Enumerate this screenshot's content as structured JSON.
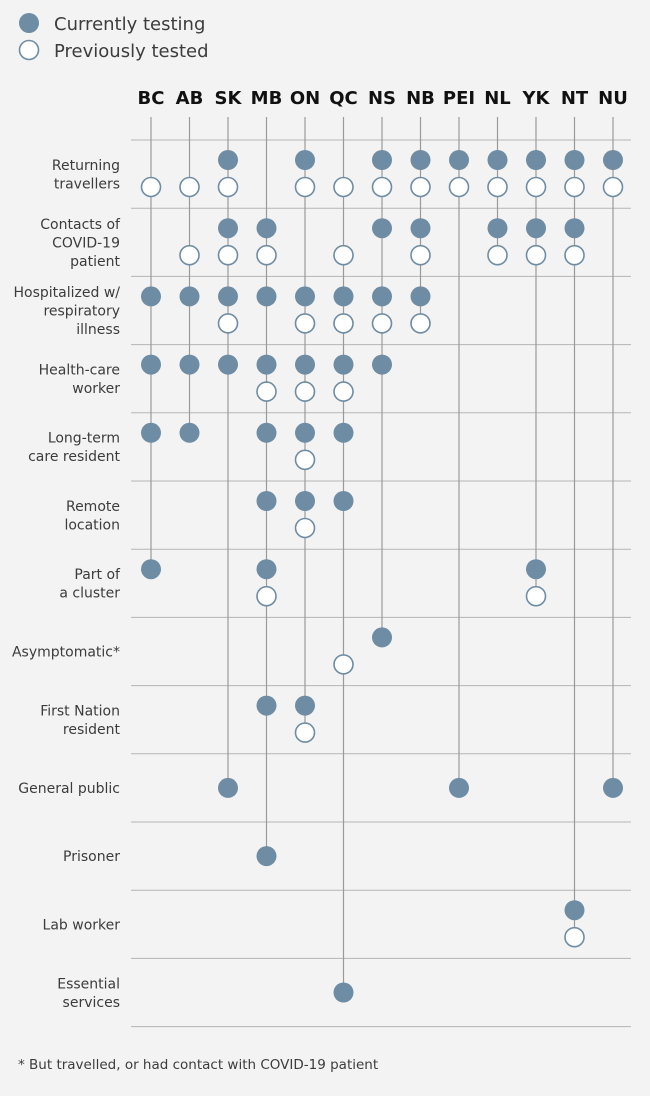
{
  "legend": {
    "current_label": "Currently testing",
    "previous_label": "Previously tested"
  },
  "colors": {
    "filled": "#6e8ca3",
    "outline": "#6e8ca3",
    "line": "#9a9a9a",
    "gridline": "#b5b5b5",
    "background": "#f3f3f3"
  },
  "footnote": "* But travelled, or had contact with COVID-19 patient",
  "chart_data": {
    "type": "dot-matrix",
    "title": "",
    "provinces": [
      "BC",
      "AB",
      "SK",
      "MB",
      "ON",
      "QC",
      "NS",
      "NB",
      "PEI",
      "NL",
      "YK",
      "NT",
      "NU"
    ],
    "categories": [
      {
        "label_lines": [
          "Returning",
          "travellers"
        ],
        "current": [
          "SK",
          "ON",
          "NS",
          "NB",
          "PEI",
          "NL",
          "YK",
          "NT",
          "NU"
        ],
        "previous": [
          "BC",
          "AB",
          "SK",
          "ON",
          "QC",
          "NS",
          "NB",
          "PEI",
          "NL",
          "YK",
          "NT",
          "NU"
        ]
      },
      {
        "label_lines": [
          "Contacts of",
          "COVID-19",
          "patient"
        ],
        "current": [
          "SK",
          "MB",
          "NS",
          "NB",
          "NL",
          "YK",
          "NT"
        ],
        "previous": [
          "AB",
          "SK",
          "MB",
          "QC",
          "NB",
          "NL",
          "YK",
          "NT"
        ]
      },
      {
        "label_lines": [
          "Hospitalized w/",
          "respiratory",
          "illness"
        ],
        "current": [
          "BC",
          "AB",
          "SK",
          "MB",
          "ON",
          "QC",
          "NS",
          "NB"
        ],
        "previous": [
          "SK",
          "ON",
          "QC",
          "NS",
          "NB"
        ]
      },
      {
        "label_lines": [
          "Health-care",
          "worker"
        ],
        "current": [
          "BC",
          "AB",
          "SK",
          "MB",
          "ON",
          "QC",
          "NS"
        ],
        "previous": [
          "MB",
          "ON",
          "QC"
        ]
      },
      {
        "label_lines": [
          "Long-term",
          "care resident"
        ],
        "current": [
          "BC",
          "AB",
          "MB",
          "ON",
          "QC"
        ],
        "previous": [
          "ON"
        ]
      },
      {
        "label_lines": [
          "Remote",
          "location"
        ],
        "current": [
          "MB",
          "ON",
          "QC"
        ],
        "previous": [
          "ON"
        ]
      },
      {
        "label_lines": [
          "Part of",
          "a cluster"
        ],
        "current": [
          "BC",
          "MB",
          "YK"
        ],
        "previous": [
          "MB",
          "YK"
        ]
      },
      {
        "label_lines": [
          "Asymptomatic*"
        ],
        "current": [
          "NS"
        ],
        "previous": [
          "QC"
        ]
      },
      {
        "label_lines": [
          "First Nation",
          "resident"
        ],
        "current": [
          "MB",
          "ON"
        ],
        "previous": [
          "ON"
        ]
      },
      {
        "label_lines": [
          "General public"
        ],
        "current": [
          "SK",
          "PEI",
          "NU"
        ],
        "previous": []
      },
      {
        "label_lines": [
          "Prisoner"
        ],
        "current": [
          "MB"
        ],
        "previous": []
      },
      {
        "label_lines": [
          "Lab worker"
        ],
        "current": [
          "NT"
        ],
        "previous": [
          "NT"
        ]
      },
      {
        "label_lines": [
          "Essential",
          "services"
        ],
        "current": [
          "QC"
        ],
        "previous": []
      }
    ]
  }
}
